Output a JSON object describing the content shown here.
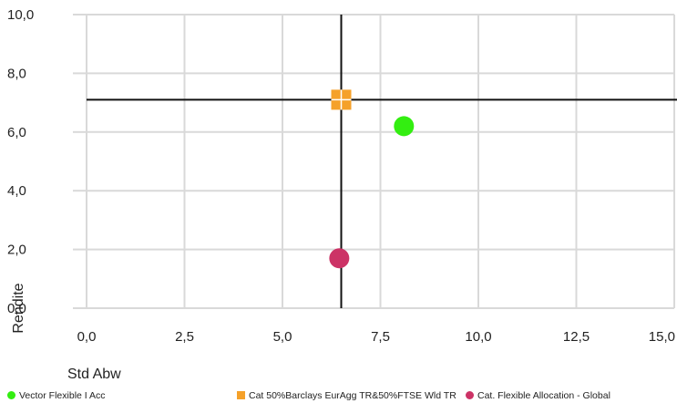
{
  "chart_data": {
    "type": "scatter",
    "xlabel": "Std Abw",
    "ylabel": "Rendite",
    "xlim": [
      0,
      15
    ],
    "ylim": [
      0,
      10
    ],
    "x_ticks": [
      "0,0",
      "2,5",
      "5,0",
      "7,5",
      "10,0",
      "12,5",
      "15,0"
    ],
    "x_tick_values": [
      0,
      2.5,
      5,
      7.5,
      10,
      12.5,
      15
    ],
    "y_ticks": [
      "0,0",
      "2,0",
      "4,0",
      "6,0",
      "8,0",
      "10,0"
    ],
    "y_tick_values": [
      0,
      2,
      4,
      6,
      8,
      10
    ],
    "grid": true,
    "legend_position": "bottom",
    "crosshair": {
      "x": 6.5,
      "y": 7.1
    },
    "series": [
      {
        "name": "Vector Flexible I Acc",
        "x": 8.1,
        "y": 6.2,
        "marker": "circle",
        "color": "#33ee11"
      },
      {
        "name": "Cat 50%Barclays EurAgg TR&50%FTSE Wld TR",
        "x": 6.5,
        "y": 7.1,
        "marker": "square",
        "color": "#f5a12a"
      },
      {
        "name": "Cat. Flexible Allocation - Global",
        "x": 6.45,
        "y": 1.7,
        "marker": "circle",
        "color": "#cc3366"
      }
    ]
  }
}
